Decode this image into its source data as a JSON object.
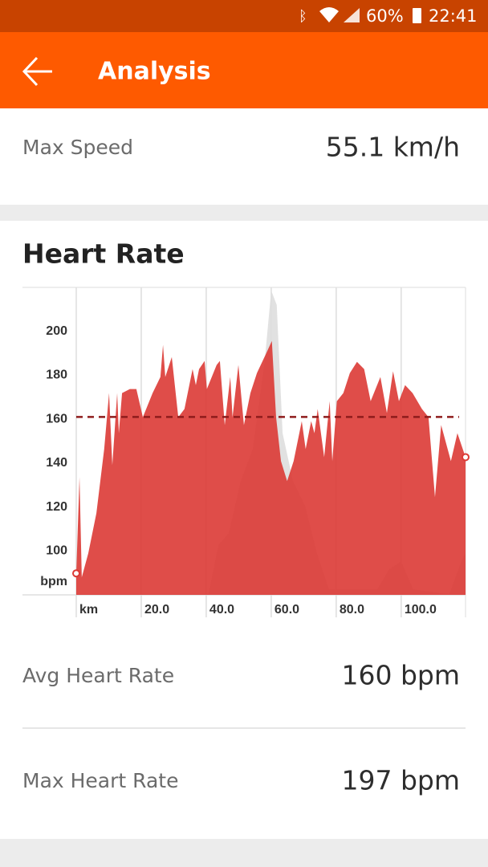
{
  "status_bar": {
    "battery": "60%",
    "time": "22:41"
  },
  "app_bar": {
    "title": "Analysis"
  },
  "max_speed": {
    "label": "Max Speed",
    "value": "55.1 km/h"
  },
  "heart_rate": {
    "title": "Heart Rate",
    "chart_data": {
      "type": "area",
      "xlim": [
        0,
        119.8
      ],
      "ylim": [
        80,
        220
      ],
      "xticks": [
        {
          "value": 0,
          "label": "km"
        },
        {
          "value": 20,
          "label": "20.0"
        },
        {
          "value": 40,
          "label": "40.0"
        },
        {
          "value": 60,
          "label": "60.0"
        },
        {
          "value": 80,
          "label": "80.0"
        },
        {
          "value": 100,
          "label": "100.0"
        }
      ],
      "yticks": [
        {
          "value": 86,
          "label": "bpm"
        },
        100,
        120,
        140,
        160,
        180,
        200
      ],
      "grid": "x",
      "reference_line": 161,
      "reference_color": "#8e1c1c",
      "endpoint_markers": true,
      "series": [
        {
          "color": "#dedede",
          "x": [
            0,
            40.7,
            43.7,
            46.9,
            50.6,
            54.3,
            58.0,
            60.0,
            61.7,
            63.5,
            66.7,
            70.4,
            74.1,
            77.8,
            92.6,
            96.3,
            100.0,
            103.7,
            114.8,
            118.5,
            119.8
          ],
          "values": [
            80.3,
            80.3,
            102.6,
            108.0,
            131.8,
            146.4,
            186.5,
            218.6,
            212.0,
            153.6,
            131.8,
            120.8,
            98.9,
            82.5,
            82.5,
            91.6,
            95.3,
            82.5,
            80.3,
            95.3,
            98.9
          ]
        },
        {
          "color": "#dc3a35",
          "x": [
            0,
            1.0,
            1.7,
            3.7,
            6.2,
            8.6,
            10.1,
            11.1,
            12.6,
            13.1,
            14.1,
            16.5,
            18.5,
            20.5,
            23.5,
            25.9,
            26.7,
            27.4,
            29.4,
            31.4,
            33.3,
            35.8,
            36.8,
            37.8,
            39.5,
            40.2,
            43.2,
            44.2,
            45.7,
            47.4,
            48.1,
            49.9,
            51.6,
            53.6,
            55.6,
            58.5,
            60.2,
            61.5,
            63.0,
            64.9,
            66.9,
            69.4,
            70.6,
            72.3,
            73.3,
            74.3,
            76.3,
            78.0,
            78.8,
            80.2,
            82.2,
            84.2,
            86.4,
            88.6,
            90.6,
            93.6,
            95.6,
            97.5,
            99.3,
            101.2,
            103.5,
            106.4,
            108.4,
            110.4,
            112.3,
            115.3,
            117.3,
            119.8
          ],
          "values": [
            89.8,
            133.6,
            88.0,
            98.9,
            117.2,
            146.4,
            171.9,
            139.1,
            171.9,
            153.6,
            171.9,
            173.7,
            173.7,
            160.9,
            171.9,
            179.2,
            193.8,
            179.2,
            188.3,
            160.9,
            164.6,
            182.8,
            175.5,
            182.8,
            186.5,
            173.7,
            184.7,
            186.5,
            157.3,
            179.2,
            160.9,
            184.7,
            157.3,
            171.9,
            181.0,
            190.1,
            195.6,
            160.9,
            140.9,
            131.8,
            140.9,
            159.1,
            146.4,
            159.1,
            153.6,
            164.6,
            142.7,
            168.2,
            140.9,
            168.2,
            171.9,
            181.0,
            186.1,
            182.8,
            168.2,
            179.2,
            162.8,
            181.8,
            168.2,
            175.5,
            171.9,
            164.6,
            160.9,
            124.5,
            157.3,
            140.9,
            153.6,
            142.7
          ]
        }
      ]
    },
    "avg": {
      "label": "Avg Heart Rate",
      "value": "160 bpm"
    },
    "max": {
      "label": "Max Heart Rate",
      "value": "197 bpm"
    }
  }
}
